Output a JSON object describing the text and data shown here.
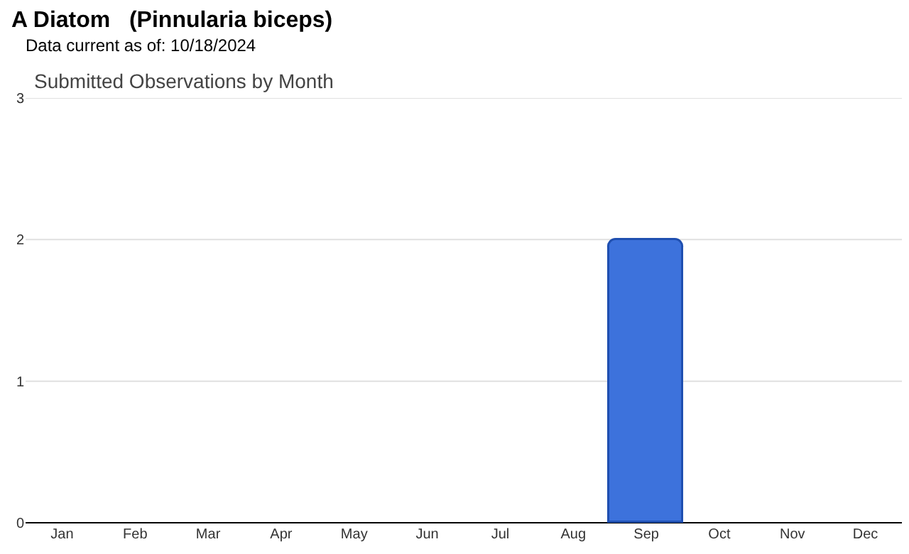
{
  "chart_data": {
    "type": "bar",
    "title": "A Diatom   (Pinnularia biceps)",
    "subtitle": "Data current as of: 10/18/2024",
    "annotations": [
      "Submitted Observations by Month"
    ],
    "categories": [
      "Jan",
      "Feb",
      "Mar",
      "Apr",
      "May",
      "Jun",
      "Jul",
      "Aug",
      "Sep",
      "Oct",
      "Nov",
      "Dec"
    ],
    "values": [
      0,
      0,
      0,
      0,
      0,
      0,
      0,
      0,
      2,
      0,
      0,
      0
    ],
    "color": "#3d72dc",
    "ylim": [
      0,
      3
    ],
    "yticks": [
      0,
      1,
      2,
      3
    ],
    "grid": "y"
  }
}
